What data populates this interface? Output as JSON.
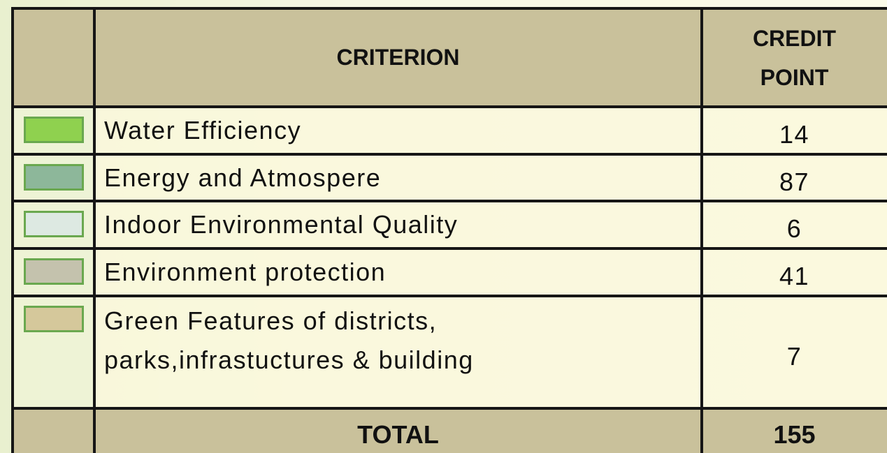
{
  "table": {
    "header": {
      "criterion": "CRITERION",
      "credit": "CREDIT POINT"
    },
    "rows": [
      {
        "color": "#8fd14f",
        "criterion": "Water Efficiency",
        "credit": 14
      },
      {
        "color": "#8db79a",
        "criterion": "Energy and Atmospere",
        "credit": 87
      },
      {
        "color": "#dde9e2",
        "criterion": "Indoor Environmental Quality",
        "credit": 6
      },
      {
        "color": "#c4c2ad",
        "criterion": "Environment protection",
        "credit": 41
      },
      {
        "color": "#d5c89b",
        "criterion": "Green Features of districts, parks,infrastuctures & building",
        "credit": 7
      }
    ],
    "total": {
      "label": "TOTAL",
      "credit": 155
    }
  }
}
